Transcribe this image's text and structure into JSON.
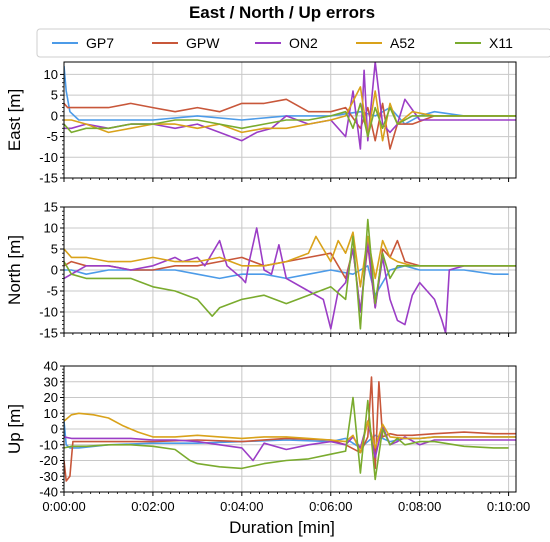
{
  "chart_data": {
    "type": "line",
    "title": "East / North / Up errors",
    "xlabel": "Duration [min]",
    "legend_position": "top",
    "xlim": [
      0,
      610
    ],
    "xticks": [
      0,
      120,
      240,
      360,
      480,
      600
    ],
    "xticklabels": [
      "0:00:00",
      "0:02:00",
      "0:04:00",
      "0:06:00",
      "0:08:00",
      "0:10:00"
    ],
    "grid": true,
    "series_meta": [
      {
        "name": "GP7",
        "color": "#4c9be8"
      },
      {
        "name": "GPW",
        "color": "#c8573a"
      },
      {
        "name": "ON2",
        "color": "#9b3dc6"
      },
      {
        "name": "A52",
        "color": "#d9a21a"
      },
      {
        "name": "X11",
        "color": "#7aab2e"
      }
    ],
    "panels": [
      {
        "ylabel": "East [m]",
        "ylim": [
          -15,
          13
        ],
        "yticks": [
          -15,
          -10,
          -5,
          0,
          5,
          10
        ],
        "series": [
          {
            "name": "GP7",
            "x": [
              0,
              3,
              8,
              20,
              60,
              120,
              180,
              240,
              300,
              360,
              400,
              420,
              440,
              460,
              480,
              500,
              540,
              580,
              610
            ],
            "y": [
              12,
              6,
              1,
              -1,
              -1,
              -1,
              0,
              -1,
              0,
              0,
              1,
              0,
              2,
              -2,
              0,
              1,
              0,
              0,
              0
            ]
          },
          {
            "name": "GPW",
            "x": [
              0,
              5,
              20,
              60,
              90,
              120,
              150,
              180,
              210,
              240,
              270,
              300,
              330,
              360,
              380,
              400,
              410,
              420,
              430,
              440,
              450,
              470,
              500,
              540,
              580,
              610
            ],
            "y": [
              3,
              2,
              2,
              2,
              3,
              2,
              1,
              2,
              1,
              3,
              3,
              4,
              1,
              1,
              2,
              -3,
              2,
              -6,
              3,
              -8,
              -2,
              -2,
              0,
              0,
              0,
              0
            ]
          },
          {
            "name": "ON2",
            "x": [
              0,
              10,
              30,
              60,
              90,
              120,
              150,
              180,
              210,
              240,
              260,
              280,
              300,
              330,
              360,
              380,
              390,
              400,
              405,
              410,
              420,
              430,
              440,
              450,
              460,
              480,
              500,
              540,
              580,
              610
            ],
            "y": [
              -3,
              -3,
              -2,
              -3,
              -2,
              -2,
              -3,
              -2,
              -4,
              -6,
              -4,
              -3,
              0,
              -2,
              -1,
              -5,
              6,
              -8,
              11,
              -6,
              13,
              -2,
              -4,
              -2,
              4,
              -1,
              -1,
              -1,
              -1,
              -1
            ]
          },
          {
            "name": "A52",
            "x": [
              0,
              10,
              30,
              60,
              90,
              120,
              150,
              180,
              210,
              240,
              270,
              300,
              330,
              360,
              380,
              400,
              410,
              420,
              430,
              440,
              450,
              470,
              500,
              540,
              580,
              610
            ],
            "y": [
              -1,
              -1,
              -2,
              -4,
              -3,
              -2,
              -2,
              -3,
              -2,
              -4,
              -3,
              -3,
              -2,
              -1,
              0,
              7,
              -5,
              6,
              -6,
              3,
              -2,
              1,
              0,
              0,
              0,
              0
            ]
          },
          {
            "name": "X11",
            "x": [
              0,
              10,
              30,
              60,
              90,
              120,
              150,
              180,
              210,
              240,
              270,
              300,
              330,
              360,
              380,
              390,
              400,
              410,
              420,
              430,
              440,
              450,
              470,
              500,
              540,
              580,
              610
            ],
            "y": [
              -2,
              -4,
              -3,
              -3,
              -2,
              -2,
              -1,
              -1,
              -2,
              -3,
              -2,
              -1,
              -1,
              0,
              1,
              -3,
              3,
              -5,
              2,
              -3,
              2,
              -2,
              0,
              0,
              0,
              0,
              0
            ]
          }
        ]
      },
      {
        "ylabel": "North [m]",
        "ylim": [
          -15,
          15
        ],
        "yticks": [
          -15,
          -10,
          -5,
          0,
          5,
          10,
          15
        ],
        "series": [
          {
            "name": "GP7",
            "x": [
              0,
              10,
              30,
              60,
              90,
              120,
              150,
              180,
              210,
              240,
              270,
              300,
              330,
              360,
              390,
              410,
              420,
              440,
              460,
              480,
              500,
              540,
              580,
              600
            ],
            "y": [
              0,
              0,
              -1,
              0,
              0,
              0,
              0,
              -1,
              -2,
              -1,
              -1,
              -2,
              -1,
              0,
              -1,
              1,
              -6,
              0,
              1,
              0,
              0,
              0,
              -1,
              -1
            ]
          },
          {
            "name": "GPW",
            "x": [
              0,
              10,
              30,
              60,
              90,
              120,
              150,
              180,
              210,
              240,
              270,
              300,
              330,
              360,
              380,
              390,
              400,
              410,
              420,
              430,
              440,
              450,
              460,
              480,
              500,
              540,
              580,
              610
            ],
            "y": [
              1,
              2,
              1,
              1,
              0,
              0,
              1,
              1,
              2,
              3,
              1,
              2,
              3,
              4,
              -2,
              5,
              -10,
              6,
              -9,
              5,
              3,
              7,
              2,
              1,
              1,
              1,
              1,
              1
            ]
          },
          {
            "name": "ON2",
            "x": [
              0,
              10,
              30,
              60,
              90,
              120,
              150,
              160,
              180,
              190,
              210,
              220,
              240,
              245,
              250,
              260,
              270,
              280,
              290,
              300,
              330,
              350,
              360,
              370,
              380,
              390,
              400,
              410,
              420,
              430,
              440,
              450,
              460,
              470,
              480,
              500,
              510,
              515,
              520,
              540,
              580,
              610
            ],
            "y": [
              -2,
              -1,
              1,
              1,
              0,
              1,
              3,
              2,
              3,
              1,
              7,
              1,
              -2,
              -3,
              2,
              10,
              0,
              -1,
              6,
              -2,
              -5,
              -7,
              -14,
              -5,
              -3,
              5,
              -10,
              7,
              -9,
              3,
              -7,
              -12,
              -13,
              -6,
              -3,
              -7,
              -12,
              -15,
              0,
              1,
              1,
              1
            ]
          },
          {
            "name": "A52",
            "x": [
              0,
              10,
              30,
              60,
              90,
              120,
              150,
              180,
              210,
              240,
              270,
              300,
              330,
              340,
              350,
              360,
              370,
              380,
              390,
              400,
              410,
              420,
              430,
              440,
              450,
              470,
              500,
              540,
              580,
              610
            ],
            "y": [
              5,
              3,
              3,
              2,
              2,
              3,
              2,
              2,
              3,
              1,
              1,
              2,
              4,
              8,
              5,
              2,
              7,
              4,
              9,
              -4,
              8,
              -2,
              7,
              3,
              2,
              1,
              1,
              1,
              1,
              1
            ]
          },
          {
            "name": "X11",
            "x": [
              0,
              10,
              30,
              60,
              90,
              120,
              150,
              180,
              200,
              210,
              240,
              270,
              300,
              330,
              360,
              380,
              390,
              400,
              410,
              420,
              430,
              440,
              450,
              470,
              500,
              540,
              580,
              610
            ],
            "y": [
              2,
              -1,
              -2,
              -2,
              -2,
              -4,
              -5,
              -7,
              -11,
              -9,
              -7,
              -6,
              -8,
              -6,
              -4,
              -7,
              8,
              -14,
              12,
              -8,
              4,
              -2,
              1,
              1,
              1,
              1,
              1,
              1
            ]
          }
        ]
      },
      {
        "ylabel": "Up [m]",
        "ylim": [
          -40,
          40
        ],
        "yticks": [
          -40,
          -30,
          -20,
          -10,
          0,
          10,
          20,
          30,
          40
        ],
        "series": [
          {
            "name": "GP7",
            "x": [
              0,
              3,
              8,
              20,
              60,
              120,
              180,
              240,
              300,
              360,
              380,
              400,
              420,
              440,
              460,
              480,
              500,
              540,
              580,
              610
            ],
            "y": [
              5,
              -10,
              -12,
              -12,
              -10,
              -9,
              -9,
              -8,
              -7,
              -8,
              -6,
              -12,
              -4,
              -8,
              -6,
              -6,
              -5,
              -5,
              -5,
              -5
            ]
          },
          {
            "name": "GPW",
            "x": [
              0,
              3,
              8,
              12,
              30,
              60,
              120,
              180,
              240,
              300,
              360,
              380,
              400,
              410,
              415,
              420,
              425,
              430,
              440,
              450,
              470,
              500,
              540,
              580,
              610
            ],
            "y": [
              -20,
              -33,
              -30,
              -8,
              -8,
              -8,
              -8,
              -7,
              -8,
              -6,
              -7,
              -10,
              -15,
              -5,
              33,
              -25,
              30,
              -5,
              -3,
              -4,
              -4,
              -3,
              -2,
              -3,
              -3
            ]
          },
          {
            "name": "ON2",
            "x": [
              0,
              10,
              30,
              60,
              90,
              120,
              150,
              180,
              210,
              240,
              255,
              270,
              300,
              330,
              360,
              380,
              390,
              400,
              410,
              420,
              430,
              440,
              450,
              460,
              480,
              500,
              540,
              580,
              610
            ],
            "y": [
              -5,
              -6,
              -6,
              -6,
              -6,
              -7,
              -7,
              -8,
              -10,
              -12,
              -20,
              -9,
              -13,
              -10,
              -8,
              -10,
              -5,
              -12,
              5,
              -18,
              2,
              -10,
              -8,
              -5,
              -10,
              -7,
              -7,
              -7,
              -7
            ]
          },
          {
            "name": "A52",
            "x": [
              0,
              10,
              20,
              40,
              60,
              80,
              100,
              120,
              150,
              180,
              210,
              240,
              270,
              300,
              330,
              360,
              380,
              390,
              400,
              410,
              420,
              430,
              440,
              460,
              480,
              500,
              540,
              580,
              610
            ],
            "y": [
              5,
              9,
              10,
              9,
              7,
              2,
              -2,
              -5,
              -5,
              -4,
              -5,
              -6,
              -5,
              -5,
              -6,
              -7,
              -8,
              -4,
              -15,
              5,
              -12,
              3,
              -5,
              -6,
              -6,
              -5,
              -5,
              -5,
              -5
            ]
          },
          {
            "name": "X11",
            "x": [
              0,
              10,
              30,
              60,
              90,
              120,
              150,
              170,
              180,
              210,
              240,
              270,
              300,
              330,
              360,
              380,
              390,
              400,
              410,
              420,
              430,
              440,
              450,
              460,
              480,
              500,
              540,
              580,
              600
            ],
            "y": [
              -12,
              -11,
              -11,
              -10,
              -10,
              -11,
              -13,
              -20,
              -22,
              -24,
              -25,
              -22,
              -20,
              -19,
              -16,
              -14,
              20,
              -28,
              18,
              -32,
              0,
              -10,
              -6,
              -10,
              -8,
              -8,
              -11,
              -12,
              -12
            ]
          }
        ]
      }
    ]
  }
}
